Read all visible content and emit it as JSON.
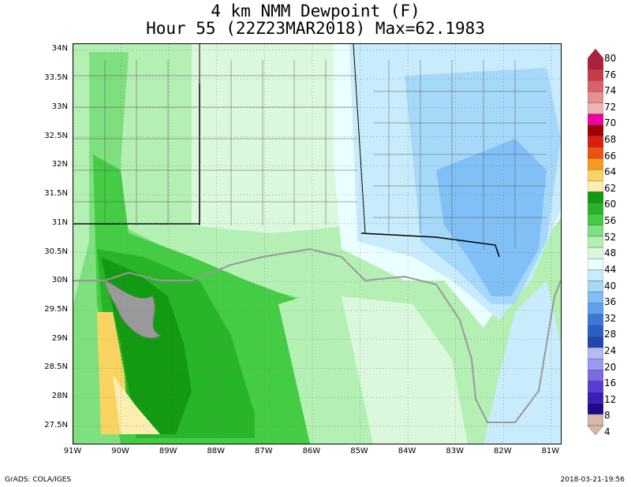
{
  "title": {
    "line1": "4 km NMM Dewpoint (F)",
    "line2": "Hour 55 (22Z23MAR2018) Max=62.1983"
  },
  "map": {
    "lat_range": [
      27.2,
      34.1
    ],
    "lon_range": [
      -91.0,
      -80.8
    ],
    "lat_ticks": [
      {
        "value": 34,
        "label": "34N"
      },
      {
        "value": 33.5,
        "label": "33.5N"
      },
      {
        "value": 33,
        "label": "33N"
      },
      {
        "value": 32.5,
        "label": "32.5N"
      },
      {
        "value": 32,
        "label": "32N"
      },
      {
        "value": 31.5,
        "label": "31.5N"
      },
      {
        "value": 31,
        "label": "31N"
      },
      {
        "value": 30.5,
        "label": "30.5N"
      },
      {
        "value": 30,
        "label": "30N"
      },
      {
        "value": 29.5,
        "label": "29.5N"
      },
      {
        "value": 29,
        "label": "29N"
      },
      {
        "value": 28.5,
        "label": "28.5N"
      },
      {
        "value": 28,
        "label": "28N"
      },
      {
        "value": 27.5,
        "label": "27.5N"
      }
    ],
    "lon_ticks": [
      {
        "value": -91,
        "label": "91W"
      },
      {
        "value": -90,
        "label": "90W"
      },
      {
        "value": -89,
        "label": "89W"
      },
      {
        "value": -88,
        "label": "88W"
      },
      {
        "value": -87,
        "label": "87W"
      },
      {
        "value": -86,
        "label": "86W"
      },
      {
        "value": -85,
        "label": "85W"
      },
      {
        "value": -84,
        "label": "84W"
      },
      {
        "value": -83,
        "label": "83W"
      },
      {
        "value": -82,
        "label": "82W"
      },
      {
        "value": -81,
        "label": "81W"
      }
    ],
    "grid": "dotted"
  },
  "colorbar": {
    "levels": [
      {
        "label": "80",
        "color": "#b0203a"
      },
      {
        "label": "76",
        "color": "#c83a48"
      },
      {
        "label": "74",
        "color": "#dc6068"
      },
      {
        "label": "72",
        "color": "#e89090"
      },
      {
        "label": "70",
        "color": "#f0b4b4"
      },
      {
        "label": "68",
        "color": "#f000a0"
      },
      {
        "label": "66",
        "color": "#a00000"
      },
      {
        "label": "64",
        "color": "#d82010"
      },
      {
        "label": "62",
        "color": "#f05010"
      },
      {
        "label": "60",
        "color": "#f89a20"
      },
      {
        "label": "56",
        "color": "#fad460"
      },
      {
        "label": "52",
        "color": "#fbeeb0"
      },
      {
        "label": "48",
        "color": "#139a13"
      },
      {
        "label": "44",
        "color": "#29b529"
      },
      {
        "label": "40",
        "color": "#45cc45"
      },
      {
        "label": "36",
        "color": "#7fe07f"
      },
      {
        "label": "32",
        "color": "#b4f0b4"
      },
      {
        "label": "28",
        "color": "#dcf8dc"
      },
      {
        "label": "24",
        "color": "#eaffff"
      },
      {
        "label": "20",
        "color": "#c8ecfc"
      },
      {
        "label": "16",
        "color": "#a6d8fa"
      },
      {
        "label": "12",
        "color": "#80c0f6"
      },
      {
        "label": "8",
        "color": "#5ea2ee"
      },
      {
        "label": "4",
        "color": "#3c78dc"
      },
      {
        "label": "",
        "color": "#2660c6"
      },
      {
        "label": "",
        "color": "#1e48b0"
      },
      {
        "label": "",
        "color": "#b8b8f4"
      },
      {
        "label": "",
        "color": "#9a9af0"
      },
      {
        "label": "",
        "color": "#7a6ae4"
      },
      {
        "label": "",
        "color": "#5a3cd4"
      },
      {
        "label": "",
        "color": "#3a1cb8"
      },
      {
        "label": "",
        "color": "#1e0a8c"
      },
      {
        "label": "",
        "color": "#d8b8a4"
      }
    ],
    "tick_labels": [
      "80",
      "76",
      "74",
      "72",
      "70",
      "68",
      "66",
      "64",
      "62",
      "60",
      "56",
      "52",
      "48",
      "44",
      "40",
      "36",
      "32",
      "28",
      "24",
      "20",
      "16",
      "12",
      "8",
      "4"
    ]
  },
  "footer": {
    "left": "GrADS: COLA/IGES",
    "right": "2018-03-21-19:56"
  }
}
